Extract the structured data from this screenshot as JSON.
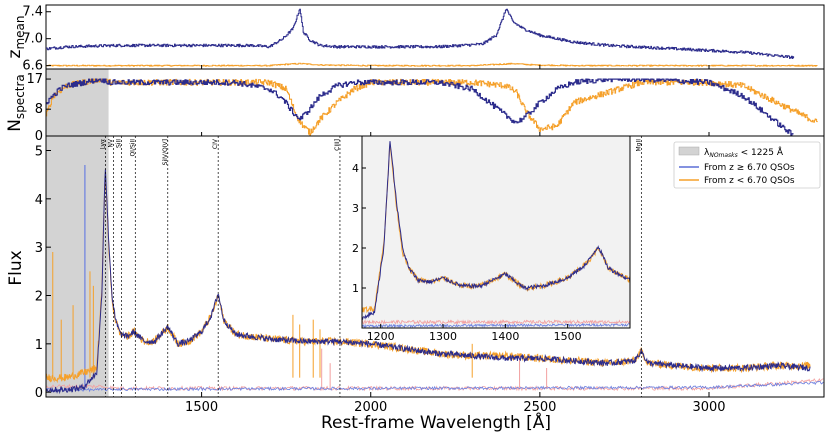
{
  "chart_data": {
    "type": "line",
    "xlabel": "Rest-frame Wavelength [Å]",
    "xlim": [
      1040,
      3340
    ],
    "x_ticks": [
      1500,
      2000,
      2500,
      3000
    ],
    "x_tick_labels": [
      "1500",
      "2000",
      "2500",
      "3000"
    ],
    "colors": {
      "high_z": "#2c2c8c",
      "low_z": "#f5a02a",
      "high_z_err": "#6a7fe0",
      "low_z_err": "#f2a0a0",
      "mask": "#d3d3d3",
      "legend_high": "#5b6fd6"
    },
    "panels": {
      "zmean": {
        "ylabel_main": "z",
        "ylabel_sub": "mean",
        "ylim": [
          6.55,
          7.5
        ],
        "y_ticks": [
          6.6,
          7.0,
          7.4
        ],
        "y_tick_labels": [
          "6.6",
          "7.0",
          "7.4"
        ],
        "series": [
          {
            "name": "z >= 6.70",
            "x": [
              1040,
              1060,
              1100,
              1250,
              1650,
              1700,
              1740,
              1770,
              1790,
              1800,
              1820,
              1850,
              1900,
              2000,
              2200,
              2330,
              2370,
              2390,
              2400,
              2420,
              2450,
              2500,
              2600,
              2700,
              2900,
              3100,
              3250
            ],
            "y": [
              6.85,
              6.86,
              6.88,
              6.9,
              6.9,
              6.88,
              7.0,
              7.15,
              7.45,
              7.1,
              6.98,
              6.9,
              6.88,
              6.88,
              6.88,
              6.92,
              7.05,
              7.3,
              7.45,
              7.25,
              7.15,
              7.05,
              6.95,
              6.9,
              6.85,
              6.8,
              6.72
            ]
          },
          {
            "name": "z < 6.70",
            "x": [
              1040,
              1700,
              1750,
              1790,
              1850,
              2000,
              2300,
              2380,
              2420,
              2480,
              2600,
              3000,
              3320
            ],
            "y": [
              6.6,
              6.6,
              6.62,
              6.63,
              6.61,
              6.6,
              6.6,
              6.62,
              6.63,
              6.61,
              6.6,
              6.6,
              6.6
            ]
          }
        ]
      },
      "nspectra": {
        "ylabel_main": "N",
        "ylabel_sub": "spectra",
        "ylim": [
          0,
          20
        ],
        "y_ticks": [
          0,
          8,
          17
        ],
        "y_tick_labels": [
          "0",
          "8",
          "17"
        ],
        "series": [
          {
            "name": "z >= 6.70",
            "x": [
              1040,
              1060,
              1080,
              1100,
              1150,
              1200,
              1230,
              1300,
              1400,
              1600,
              1650,
              1700,
              1740,
              1770,
              1790,
              1810,
              1850,
              1900,
              1950,
              2000,
              2100,
              2200,
              2300,
              2350,
              2400,
              2430,
              2460,
              2500,
              2550,
              2600,
              2700,
              2800,
              3000,
              3100,
              3150,
              3200,
              3250
            ],
            "y": [
              10,
              12,
              14,
              15,
              16,
              17,
              16,
              16,
              16,
              16,
              15,
              14,
              11,
              7,
              5,
              7,
              12,
              15,
              16,
              16,
              16,
              16,
              14,
              10,
              6,
              4,
              6,
              10,
              14,
              16,
              17,
              17,
              16,
              12,
              8,
              4,
              0
            ]
          },
          {
            "name": "z < 6.70",
            "x": [
              1040,
              1060,
              1100,
              1150,
              1200,
              1230,
              1300,
              1400,
              1600,
              1650,
              1700,
              1750,
              1780,
              1800,
              1820,
              1850,
              1900,
              1950,
              2000,
              2100,
              2200,
              2300,
              2400,
              2430,
              2460,
              2500,
              2550,
              2600,
              2800,
              3000,
              3100,
              3200,
              3320
            ],
            "y": [
              6,
              12,
              15,
              16,
              17,
              16,
              16,
              16,
              16,
              16,
              16,
              14,
              6,
              3,
              1,
              5,
              10,
              14,
              16,
              16,
              16,
              16,
              15,
              13,
              7,
              2,
              3,
              10,
              16,
              16,
              15,
              10,
              4
            ]
          }
        ]
      },
      "flux": {
        "ylabel": "Flux",
        "ylim": [
          -0.1,
          5.3
        ],
        "y_ticks": [
          0,
          1,
          2,
          3,
          4,
          5
        ],
        "y_tick_labels": [
          "0",
          "1",
          "2",
          "3",
          "4",
          "5"
        ],
        "series": [
          {
            "name": "From z ≥ 6.70 QSOs",
            "x": [
              1040,
              1100,
              1150,
              1190,
              1205,
              1215,
              1225,
              1235,
              1245,
              1260,
              1280,
              1300,
              1330,
              1360,
              1400,
              1430,
              1460,
              1500,
              1530,
              1549,
              1565,
              1600,
              1700,
              1800,
              1900,
              2000,
              2100,
              2200,
              2300,
              2400,
              2500,
              2600,
              2700,
              2780,
              2800,
              2820,
              2900,
              3000,
              3100,
              3200,
              3300
            ],
            "y": [
              0.05,
              0.05,
              0.1,
              0.4,
              2.0,
              4.7,
              3.2,
              2.0,
              1.5,
              1.2,
              1.15,
              1.25,
              1.05,
              1.05,
              1.35,
              1.0,
              1.05,
              1.25,
              1.6,
              2.05,
              1.5,
              1.2,
              1.1,
              1.05,
              1.05,
              1.0,
              0.9,
              0.8,
              0.75,
              0.7,
              0.7,
              0.65,
              0.6,
              0.65,
              0.85,
              0.6,
              0.55,
              0.5,
              0.5,
              0.55,
              0.5
            ]
          },
          {
            "name": "From z < 6.70 QSOs",
            "x": [
              1040,
              1100,
              1150,
              1190,
              1205,
              1215,
              1225,
              1235,
              1245,
              1260,
              1280,
              1300,
              1330,
              1360,
              1400,
              1430,
              1460,
              1500,
              1530,
              1549,
              1565,
              1600,
              1700,
              1800,
              1900,
              2000,
              2100,
              2200,
              2300,
              2400,
              2500,
              2600,
              2700,
              2780,
              2800,
              2820,
              2900,
              3000,
              3100,
              3200,
              3300
            ],
            "y": [
              0.3,
              0.3,
              0.4,
              0.5,
              2.1,
              4.6,
              3.1,
              1.9,
              1.5,
              1.2,
              1.15,
              1.25,
              1.05,
              1.05,
              1.35,
              1.0,
              1.05,
              1.25,
              1.6,
              2.0,
              1.5,
              1.2,
              1.1,
              1.05,
              1.05,
              1.0,
              0.9,
              0.8,
              0.75,
              0.75,
              0.7,
              0.65,
              0.6,
              0.65,
              0.85,
              0.6,
              0.55,
              0.5,
              0.5,
              0.55,
              0.55
            ]
          }
        ],
        "emission_lines": [
          {
            "label": "Lyα",
            "x": 1216
          },
          {
            "label": "NV",
            "x": 1240
          },
          {
            "label": "SiII",
            "x": 1263
          },
          {
            "label": "OI/SiII",
            "x": 1304
          },
          {
            "label": "SiIV/OIV]",
            "x": 1400
          },
          {
            "label": "CIV",
            "x": 1549
          },
          {
            "label": "CIII]",
            "x": 1909
          },
          {
            "label": "MgII",
            "x": 2800
          }
        ],
        "legend": [
          {
            "label_main": "λ",
            "label_sub": "NOmasks",
            "label_rest": " < 1225 Å"
          },
          {
            "label": "From z ≥ 6.70 QSOs"
          },
          {
            "label": "From z < 6.70 QSOs"
          }
        ]
      },
      "inset": {
        "xlim": [
          1170,
          1600
        ],
        "ylim": [
          0,
          4.8
        ],
        "x_ticks": [
          1200,
          1300,
          1400,
          1500
        ],
        "x_tick_labels": [
          "1200",
          "1300",
          "1400",
          "1500"
        ],
        "y_ticks": [
          1,
          2,
          3,
          4
        ],
        "y_tick_labels": [
          "1",
          "2",
          "3",
          "4"
        ]
      }
    }
  }
}
